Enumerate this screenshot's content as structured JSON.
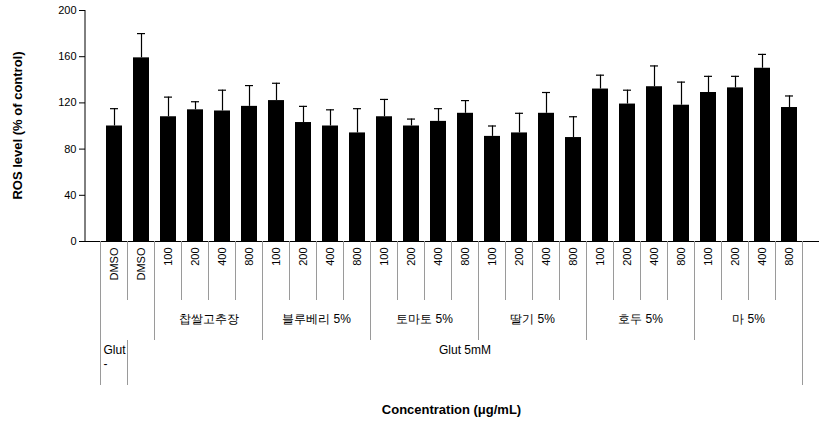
{
  "chart_data": {
    "type": "bar",
    "y_label": "ROS level (% of control)",
    "x_label": "Concentration (μg/mL)",
    "categories": [
      "DMSO",
      "DMSO",
      "100",
      "200",
      "400",
      "800",
      "100",
      "200",
      "400",
      "800",
      "100",
      "200",
      "400",
      "800",
      "100",
      "200",
      "400",
      "800",
      "100",
      "200",
      "400",
      "800",
      "100",
      "200",
      "400",
      "800"
    ],
    "values": [
      100,
      159,
      108,
      114,
      113,
      117,
      122,
      103,
      100,
      94,
      108,
      100,
      104,
      111,
      91,
      94,
      111,
      90,
      132,
      119,
      134,
      118,
      129,
      133,
      150,
      116
    ],
    "errors": [
      15,
      21,
      17,
      7,
      18,
      18,
      15,
      14,
      14,
      21,
      15,
      6,
      11,
      11,
      9,
      17,
      18,
      18,
      12,
      12,
      18,
      20,
      14,
      10,
      12,
      10
    ],
    "groups": [
      {
        "label": null,
        "size": 2
      },
      {
        "label": "찹쌀고추장",
        "size": 4
      },
      {
        "label": "블루베리 5%",
        "size": 4
      },
      {
        "label": "토마토 5%",
        "size": 4
      },
      {
        "label": "딸기 5%",
        "size": 4
      },
      {
        "label": "호두 5%",
        "size": 4
      },
      {
        "label": "마 5%",
        "size": 4
      }
    ],
    "conditions": [
      {
        "label": "Glut -",
        "size": 1
      },
      {
        "label": "Glut 5mM",
        "size": 25
      }
    ],
    "color": "#000000",
    "ylim": [
      0,
      200
    ],
    "yticks": [
      0,
      40,
      80,
      120,
      160,
      200
    ],
    "grid": false
  }
}
